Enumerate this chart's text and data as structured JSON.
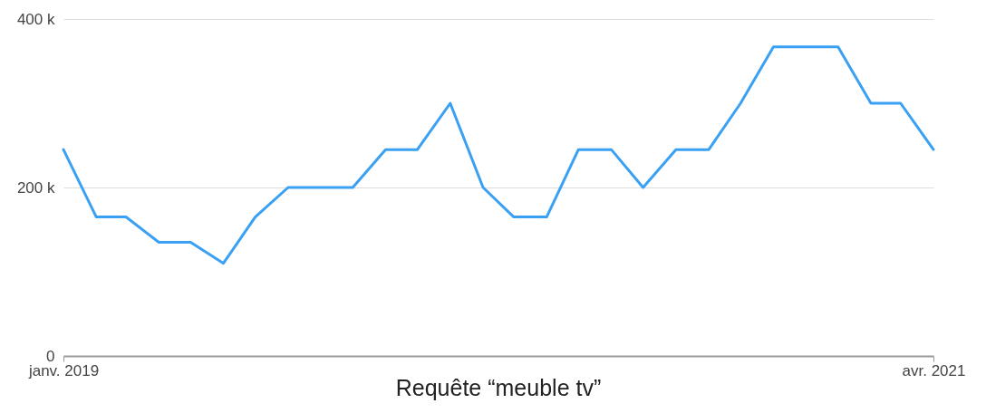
{
  "chart_data": {
    "type": "line",
    "title": "Requête “meuble tv”",
    "x": [
      "2019-01",
      "2019-02",
      "2019-03",
      "2019-04",
      "2019-05",
      "2019-06",
      "2019-07",
      "2019-08",
      "2019-09",
      "2019-10",
      "2019-11",
      "2019-12",
      "2020-01",
      "2020-02",
      "2020-03",
      "2020-04",
      "2020-05",
      "2020-06",
      "2020-07",
      "2020-08",
      "2020-09",
      "2020-10",
      "2020-11",
      "2020-12",
      "2021-01",
      "2021-02",
      "2021-03",
      "2021-04"
    ],
    "values": [
      245000,
      165000,
      165000,
      135000,
      135000,
      110000,
      165000,
      200000,
      200000,
      200000,
      245000,
      245000,
      300000,
      200000,
      165000,
      165000,
      245000,
      245000,
      200000,
      245000,
      245000,
      300000,
      367000,
      367000,
      367000,
      300000,
      300000,
      245000
    ],
    "color": "#3aa0f3",
    "xlim": [
      "2019-01",
      "2021-04"
    ],
    "xticks": [
      {
        "value": "2019-01",
        "label": "janv. 2019"
      },
      {
        "value": "2021-04",
        "label": "avr. 2021"
      }
    ],
    "ylim": [
      0,
      400000
    ],
    "yticks": [
      0,
      {
        "value": 200000,
        "label": "200 k"
      },
      {
        "value": 400000,
        "label": "400 k"
      }
    ],
    "grid": "y"
  }
}
